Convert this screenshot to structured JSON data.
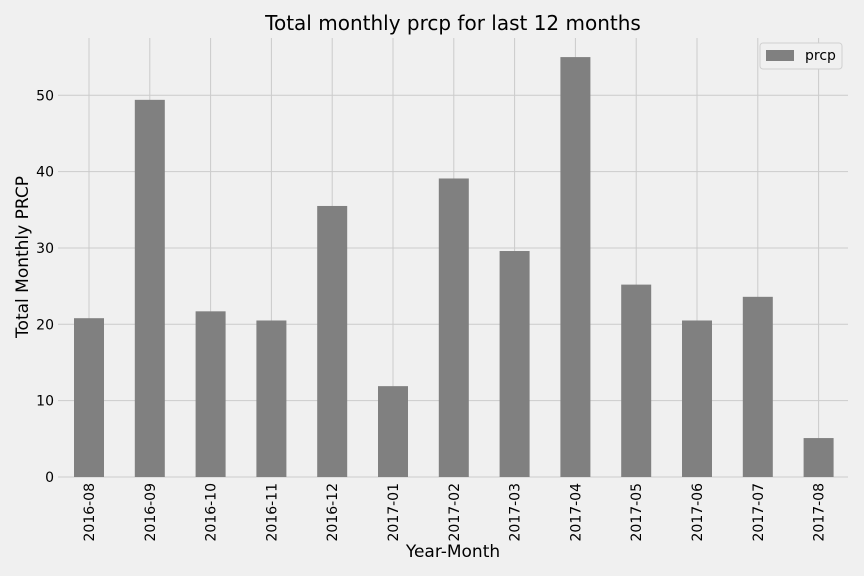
{
  "chart_data": {
    "type": "bar",
    "title": "Total monthly prcp for last 12 months",
    "xlabel": "Year-Month",
    "ylabel": "Total Monthly PRCP",
    "categories": [
      "2016-08",
      "2016-09",
      "2016-10",
      "2016-11",
      "2016-12",
      "2017-01",
      "2017-02",
      "2017-03",
      "2017-04",
      "2017-05",
      "2017-06",
      "2017-07",
      "2017-08"
    ],
    "series": [
      {
        "name": "prcp",
        "values": [
          20.8,
          49.4,
          21.7,
          20.5,
          35.5,
          11.9,
          39.1,
          29.6,
          55.0,
          25.2,
          20.5,
          23.6,
          5.1
        ],
        "color": "#808080"
      }
    ],
    "ylim": [
      0,
      57.5
    ],
    "yticks": [
      0,
      10,
      20,
      30,
      40,
      50
    ],
    "grid": true,
    "legend": "top-right",
    "background": "#f0f0f0",
    "grid_color": "#cbcbcb"
  }
}
